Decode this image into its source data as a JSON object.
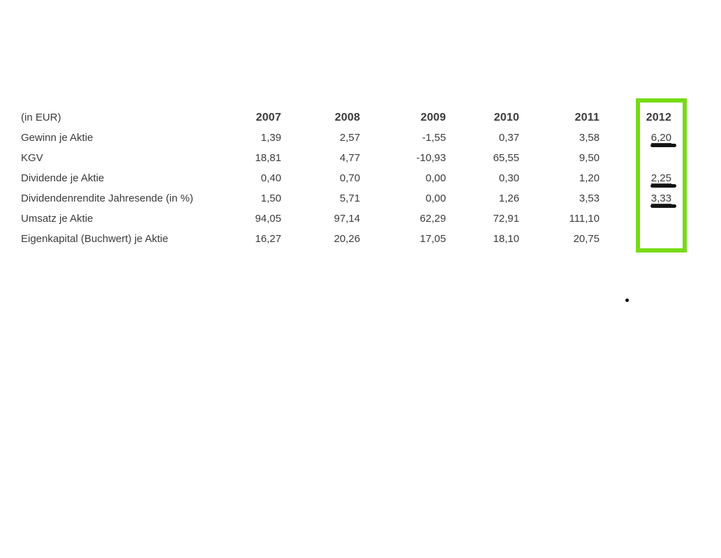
{
  "page": {
    "background": "#ffffff"
  },
  "table": {
    "unit_label": "(in EUR)",
    "columns": [
      "2007",
      "2008",
      "2009",
      "2010",
      "2011",
      "2012"
    ],
    "rows": [
      {
        "label": "Gewinn je Aktie",
        "values": [
          "1,39",
          "2,57",
          "-1,55",
          "0,37",
          "3,58",
          "6,20"
        ],
        "marked_2012": true
      },
      {
        "label": "KGV",
        "values": [
          "18,81",
          "4,77",
          "-10,93",
          "65,55",
          "9,50",
          ""
        ],
        "marked_2012": false
      },
      {
        "label": "Dividende je Aktie",
        "values": [
          "0,40",
          "0,70",
          "0,00",
          "0,30",
          "1,20",
          "2,25"
        ],
        "marked_2012": true
      },
      {
        "label": "Dividendenrendite Jahresende (in %)",
        "values": [
          "1,50",
          "5,71",
          "0,00",
          "1,26",
          "3,53",
          "3,33"
        ],
        "marked_2012": true
      },
      {
        "label": "Umsatz je Aktie",
        "values": [
          "94,05",
          "97,14",
          "62,29",
          "72,91",
          "111,10",
          ""
        ],
        "marked_2012": false
      },
      {
        "label": "Eigenkapital (Buchwert) je Aktie",
        "values": [
          "16,27",
          "20,26",
          "17,05",
          "18,10",
          "20,75",
          ""
        ],
        "marked_2012": false
      }
    ]
  },
  "annotations": {
    "highlighted_column": "2012",
    "highlight_color": "#76dc14",
    "marker_color": "#141414",
    "underlined_values": [
      "6,20",
      "2,25",
      "3,33"
    ]
  },
  "colors": {
    "text": "#3b3b3b",
    "background": "#ffffff"
  }
}
